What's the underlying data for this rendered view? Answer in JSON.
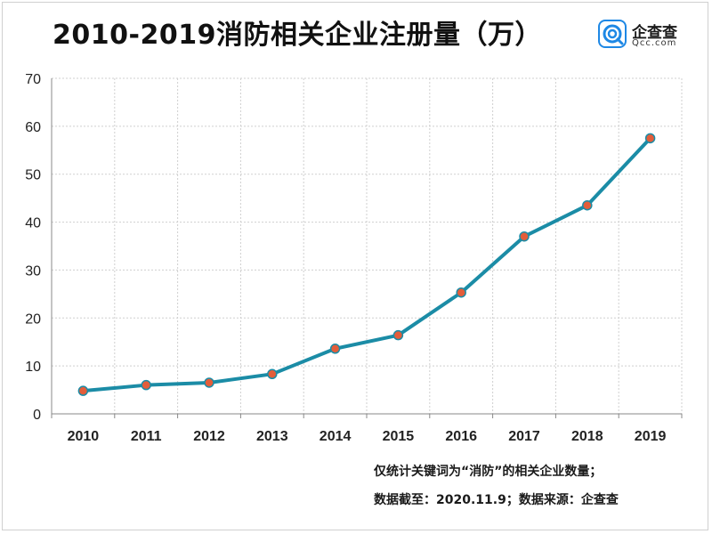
{
  "title": "2010-2019消防相关企业注册量（万）",
  "brand": {
    "name": "企查查",
    "domain": "Qcc.com",
    "icon": "qcc-logo-icon",
    "color": "#1E88E5"
  },
  "notes": [
    "仅统计关键词为“消防”的相关企业数量；",
    "数据截至：2020.11.9；数据来源：企查查"
  ],
  "colors": {
    "line": "#1B8CA6",
    "marker_fill": "#E35D3A",
    "marker_stroke": "#1B8CA6",
    "grid": "#cfcfcf"
  },
  "chart_data": {
    "type": "line",
    "title": "2010-2019消防相关企业注册量（万）",
    "xlabel": "",
    "ylabel": "",
    "categories": [
      "2010",
      "2011",
      "2012",
      "2013",
      "2014",
      "2015",
      "2016",
      "2017",
      "2018",
      "2019"
    ],
    "series": [
      {
        "values": [
          4.8,
          6.0,
          6.5,
          8.3,
          13.6,
          16.4,
          25.3,
          37.0,
          43.5,
          57.5
        ]
      }
    ],
    "ylim": [
      0,
      70
    ],
    "yticks": [
      0,
      10,
      20,
      30,
      40,
      50,
      60,
      70
    ],
    "grid": true,
    "legend": "none"
  }
}
